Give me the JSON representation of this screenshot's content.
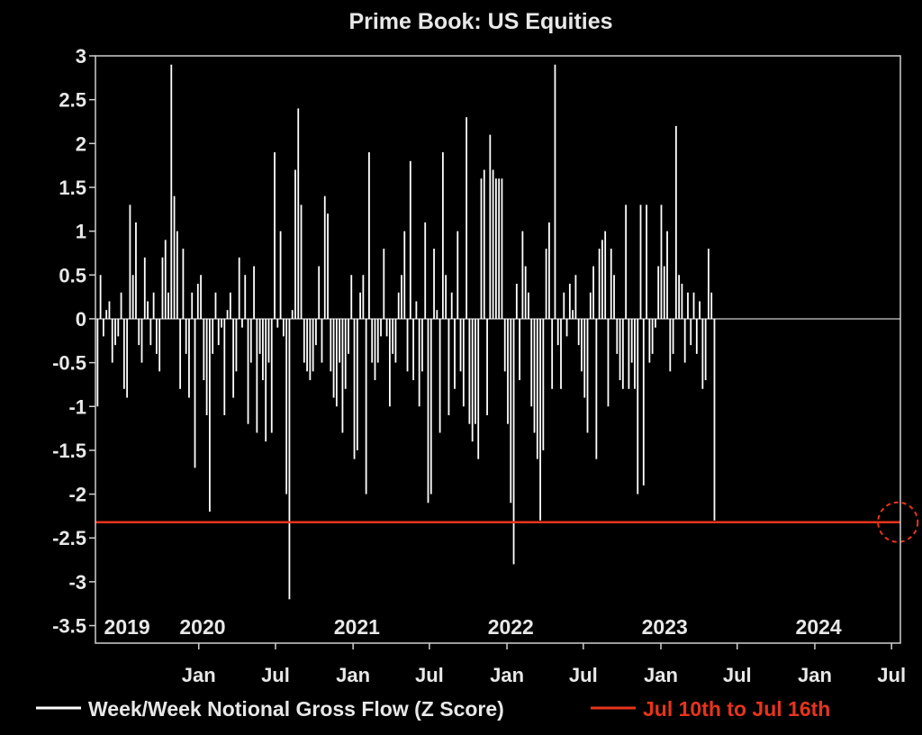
{
  "chart_data": {
    "type": "bar",
    "title": "Prime Book: US Equities",
    "xlabel": "",
    "ylabel": "",
    "ylim": [
      -3.7,
      3
    ],
    "yticks": [
      3,
      2.5,
      2,
      1.5,
      1,
      0.5,
      0,
      -0.5,
      -1,
      -1.5,
      -2,
      -2.5,
      -3,
      -3.5
    ],
    "ytick_labels": [
      "3",
      "2.5",
      "2",
      "1.5",
      "1",
      "0.5",
      "0",
      "-0.5",
      "-1",
      "-1.5",
      "-2",
      "-2.5",
      "-3",
      "-3.5"
    ],
    "xlim": [
      "2019-05-01",
      "2024-07-22"
    ],
    "year_labels": [
      {
        "label": "2019",
        "date": "2019-07-15"
      },
      {
        "label": "2020",
        "date": "2020-01-10"
      },
      {
        "label": "2021",
        "date": "2021-01-10"
      },
      {
        "label": "2022",
        "date": "2022-01-10"
      },
      {
        "label": "2023",
        "date": "2023-01-10"
      },
      {
        "label": "2024",
        "date": "2024-01-10"
      }
    ],
    "month_ticks": [
      {
        "label": "Jan",
        "date": "2020-01-01"
      },
      {
        "label": "Jul",
        "date": "2020-07-01"
      },
      {
        "label": "Jan",
        "date": "2021-01-01"
      },
      {
        "label": "Jul",
        "date": "2021-07-01"
      },
      {
        "label": "Jan",
        "date": "2022-01-01"
      },
      {
        "label": "Jul",
        "date": "2022-07-01"
      },
      {
        "label": "Jan",
        "date": "2023-01-01"
      },
      {
        "label": "Jul",
        "date": "2023-07-01"
      },
      {
        "label": "Jan",
        "date": "2024-01-01"
      },
      {
        "label": "Jul",
        "date": "2024-07-01"
      }
    ],
    "series": [
      {
        "name": "Week/Week Notional Gross Flow (Z Score)",
        "color": "#ffffff",
        "start_date": "2019-05-06",
        "interval_days": 7,
        "values": [
          -1.0,
          0.5,
          -0.2,
          0.1,
          0.2,
          -0.5,
          -0.3,
          -0.2,
          0.3,
          -0.8,
          -0.9,
          1.3,
          0.5,
          1.1,
          -0.3,
          -0.5,
          0.7,
          0.2,
          -0.3,
          0.3,
          -0.4,
          -0.6,
          0.7,
          0.9,
          0.3,
          2.9,
          1.4,
          1.0,
          -0.8,
          0.8,
          -0.4,
          -0.9,
          0.3,
          -1.7,
          0.4,
          0.5,
          -0.7,
          -1.1,
          -2.2,
          -0.4,
          0.3,
          -0.3,
          -0.1,
          -1.1,
          0.1,
          0.3,
          -0.9,
          -0.6,
          0.7,
          -0.1,
          0.5,
          -1.2,
          -0.5,
          0.6,
          -1.3,
          -0.4,
          -0.7,
          -1.4,
          -0.5,
          -1.3,
          1.9,
          -0.1,
          1.0,
          -0.2,
          -2.0,
          -3.2,
          0.1,
          1.7,
          2.4,
          1.3,
          -0.5,
          -0.6,
          -0.7,
          -0.6,
          -0.3,
          0.6,
          -0.5,
          1.4,
          1.2,
          -0.6,
          -0.9,
          -1.0,
          -0.5,
          -1.3,
          -0.8,
          -0.4,
          0.5,
          -1.6,
          -1.5,
          0.3,
          0.5,
          -2.0,
          1.9,
          -0.5,
          -0.7,
          -0.5,
          -0.2,
          0.8,
          -0.2,
          -1.0,
          -0.4,
          -0.5,
          0.3,
          0.5,
          1.0,
          -0.6,
          1.8,
          -0.7,
          0.2,
          -1.0,
          -0.6,
          1.1,
          -2.1,
          -2.0,
          0.8,
          0.1,
          -1.3,
          1.9,
          0.5,
          -1.1,
          0.3,
          -0.8,
          1.0,
          -0.6,
          -1.0,
          2.3,
          -1.2,
          -1.4,
          -1.2,
          -1.6,
          1.6,
          1.7,
          -1.1,
          2.1,
          1.7,
          1.6,
          1.6,
          1.6,
          -0.6,
          -1.2,
          -2.1,
          -2.8,
          0.4,
          -0.7,
          1.0,
          0.6,
          0.3,
          -1.0,
          -1.3,
          -1.6,
          -2.3,
          -1.5,
          0.8,
          1.1,
          -0.8,
          2.9,
          -0.3,
          -0.8,
          0.3,
          -0.2,
          0.4,
          0.1,
          0.5,
          -0.3,
          -0.6,
          -0.9,
          -1.3,
          0.3,
          0.6,
          -1.6,
          0.8,
          0.9,
          1.0,
          -1.0,
          0.8,
          0.5,
          -0.4,
          -0.7,
          -0.8,
          1.3,
          -0.8,
          -0.5,
          -0.8,
          -2.0,
          1.3,
          -1.9,
          1.3,
          -0.5,
          -0.4,
          -0.1,
          0.6,
          1.3,
          0.6,
          1.0,
          -0.6,
          -0.4,
          2.2,
          0.5,
          0.4,
          -0.5,
          0.3,
          -0.3,
          0.3,
          -0.4,
          0.2,
          -0.8,
          -0.7,
          0.8,
          0.3,
          -2.3
        ]
      },
      {
        "name": "Jul 10th to Jul 16th",
        "color": "#e8341c",
        "type": "hline",
        "value": -2.32
      }
    ],
    "highlight_circle": {
      "date": "2024-07-16",
      "value": -2.32,
      "color": "#e8341c"
    },
    "grid": false,
    "legend_position": "bottom"
  }
}
